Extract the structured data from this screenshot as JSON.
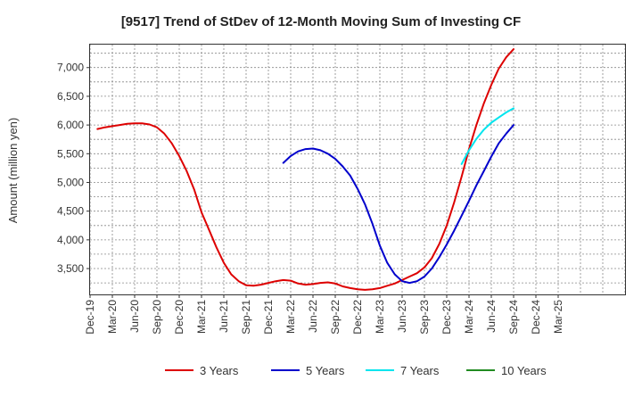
{
  "chart_data": {
    "type": "line",
    "title": "[9517]  Trend of StDev of 12-Month Moving Sum of Investing CF",
    "ylabel": "Amount (million yen)",
    "xlabel": "",
    "ylim": [
      3050,
      7400
    ],
    "yticks": [
      3500,
      4000,
      4500,
      5000,
      5500,
      6000,
      6500,
      7000
    ],
    "ytick_labels": [
      "3,500",
      "4,000",
      "4,500",
      "5,000",
      "5,500",
      "6,000",
      "6,500",
      "7,000"
    ],
    "x_start": "Dec-19",
    "x_months": 72,
    "xtick_labels": [
      "Dec-19",
      "Mar-20",
      "Jun-20",
      "Sep-20",
      "Dec-20",
      "Mar-21",
      "Jun-21",
      "Sep-21",
      "Dec-21",
      "Mar-22",
      "Jun-22",
      "Sep-22",
      "Dec-22",
      "Mar-23",
      "Jun-23",
      "Sep-23",
      "Dec-23",
      "Mar-24",
      "Jun-24",
      "Sep-24",
      "Dec-24",
      "Mar-25"
    ],
    "grid": true,
    "legend_position": "bottom",
    "series": [
      {
        "name": "3 Years",
        "color": "#dd0000",
        "points": [
          [
            "Jan-20",
            5930
          ],
          [
            "Feb-20",
            5960
          ],
          [
            "Mar-20",
            5980
          ],
          [
            "Apr-20",
            6000
          ],
          [
            "May-20",
            6020
          ],
          [
            "Jun-20",
            6030
          ],
          [
            "Jul-20",
            6030
          ],
          [
            "Aug-20",
            6010
          ],
          [
            "Sep-20",
            5960
          ],
          [
            "Oct-20",
            5850
          ],
          [
            "Nov-20",
            5680
          ],
          [
            "Dec-20",
            5460
          ],
          [
            "Jan-21",
            5200
          ],
          [
            "Feb-21",
            4880
          ],
          [
            "Mar-21",
            4480
          ],
          [
            "Apr-21",
            4180
          ],
          [
            "May-21",
            3870
          ],
          [
            "Jun-21",
            3600
          ],
          [
            "Jul-21",
            3400
          ],
          [
            "Aug-21",
            3280
          ],
          [
            "Sep-21",
            3210
          ],
          [
            "Oct-21",
            3200
          ],
          [
            "Nov-21",
            3220
          ],
          [
            "Dec-21",
            3250
          ],
          [
            "Jan-22",
            3280
          ],
          [
            "Feb-22",
            3300
          ],
          [
            "Mar-22",
            3290
          ],
          [
            "Apr-22",
            3240
          ],
          [
            "May-22",
            3220
          ],
          [
            "Jun-22",
            3230
          ],
          [
            "Jul-22",
            3250
          ],
          [
            "Aug-22",
            3260
          ],
          [
            "Sep-22",
            3240
          ],
          [
            "Oct-22",
            3190
          ],
          [
            "Nov-22",
            3160
          ],
          [
            "Dec-22",
            3140
          ],
          [
            "Jan-23",
            3130
          ],
          [
            "Feb-23",
            3140
          ],
          [
            "Mar-23",
            3160
          ],
          [
            "Apr-23",
            3200
          ],
          [
            "May-23",
            3240
          ],
          [
            "Jun-23",
            3300
          ],
          [
            "Jul-23",
            3360
          ],
          [
            "Aug-23",
            3420
          ],
          [
            "Sep-23",
            3520
          ],
          [
            "Oct-23",
            3680
          ],
          [
            "Nov-23",
            3930
          ],
          [
            "Dec-23",
            4250
          ],
          [
            "Jan-24",
            4650
          ],
          [
            "Feb-24",
            5100
          ],
          [
            "Mar-24",
            5580
          ],
          [
            "Apr-24",
            6000
          ],
          [
            "May-24",
            6380
          ],
          [
            "Jun-24",
            6700
          ],
          [
            "Jul-24",
            6980
          ],
          [
            "Aug-24",
            7180
          ],
          [
            "Sep-24",
            7320
          ]
        ]
      },
      {
        "name": "5 Years",
        "color": "#0000cc",
        "points": [
          [
            "Feb-22",
            5340
          ],
          [
            "Mar-22",
            5460
          ],
          [
            "Apr-22",
            5540
          ],
          [
            "May-22",
            5580
          ],
          [
            "Jun-22",
            5590
          ],
          [
            "Jul-22",
            5560
          ],
          [
            "Aug-22",
            5500
          ],
          [
            "Sep-22",
            5410
          ],
          [
            "Oct-22",
            5280
          ],
          [
            "Nov-22",
            5120
          ],
          [
            "Dec-22",
            4890
          ],
          [
            "Jan-23",
            4620
          ],
          [
            "Feb-23",
            4280
          ],
          [
            "Mar-23",
            3900
          ],
          [
            "Apr-23",
            3600
          ],
          [
            "May-23",
            3400
          ],
          [
            "Jun-23",
            3280
          ],
          [
            "Jul-23",
            3250
          ],
          [
            "Aug-23",
            3280
          ],
          [
            "Sep-23",
            3360
          ],
          [
            "Oct-23",
            3500
          ],
          [
            "Nov-23",
            3700
          ],
          [
            "Dec-23",
            3920
          ],
          [
            "Jan-24",
            4160
          ],
          [
            "Feb-24",
            4420
          ],
          [
            "Mar-24",
            4680
          ],
          [
            "Apr-24",
            4950
          ],
          [
            "May-24",
            5200
          ],
          [
            "Jun-24",
            5450
          ],
          [
            "Jul-24",
            5680
          ],
          [
            "Aug-24",
            5850
          ],
          [
            "Sep-24",
            6000
          ]
        ]
      },
      {
        "name": "7 Years",
        "color": "#00e5ee",
        "points": [
          [
            "Feb-24",
            5320
          ],
          [
            "Mar-24",
            5560
          ],
          [
            "Apr-24",
            5760
          ],
          [
            "May-24",
            5920
          ],
          [
            "Jun-24",
            6040
          ],
          [
            "Jul-24",
            6130
          ],
          [
            "Aug-24",
            6220
          ],
          [
            "Sep-24",
            6290
          ]
        ]
      },
      {
        "name": "10 Years",
        "color": "#228b22",
        "points": []
      }
    ]
  }
}
